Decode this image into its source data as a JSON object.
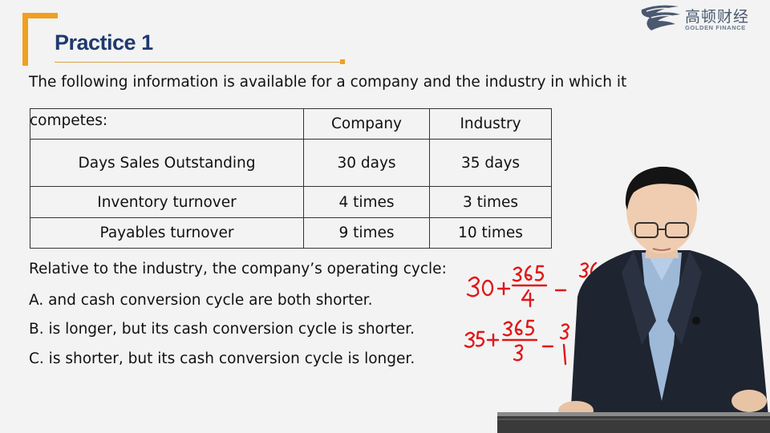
{
  "slide": {
    "title": "Practice 1",
    "intro": "The following information is available for a company and the industry in which it",
    "table": {
      "header": [
        "competes:",
        "Company",
        "Industry"
      ],
      "rows": [
        [
          "Days Sales Outstanding",
          "30 days",
          "35 days"
        ],
        [
          "Inventory turnover",
          "4 times",
          "3 times"
        ],
        [
          "Payables turnover",
          "9 times",
          "10 times"
        ]
      ]
    },
    "question": "Relative to the industry, the company’s operating cycle:",
    "options": [
      "A. and cash conversion cycle are both shorter.",
      "B. is longer, but its cash conversion cycle is shorter.",
      "C. is shorter, but its cash conversion cycle is longer."
    ]
  },
  "logo": {
    "chinese": "高顿财经",
    "english": "GOLDEN FINANCE"
  },
  "colors": {
    "accent_orange": "#f0a020",
    "title_blue": "#1f3a6e",
    "handwriting_red": "#e01818",
    "background": "#f3f3f3"
  }
}
